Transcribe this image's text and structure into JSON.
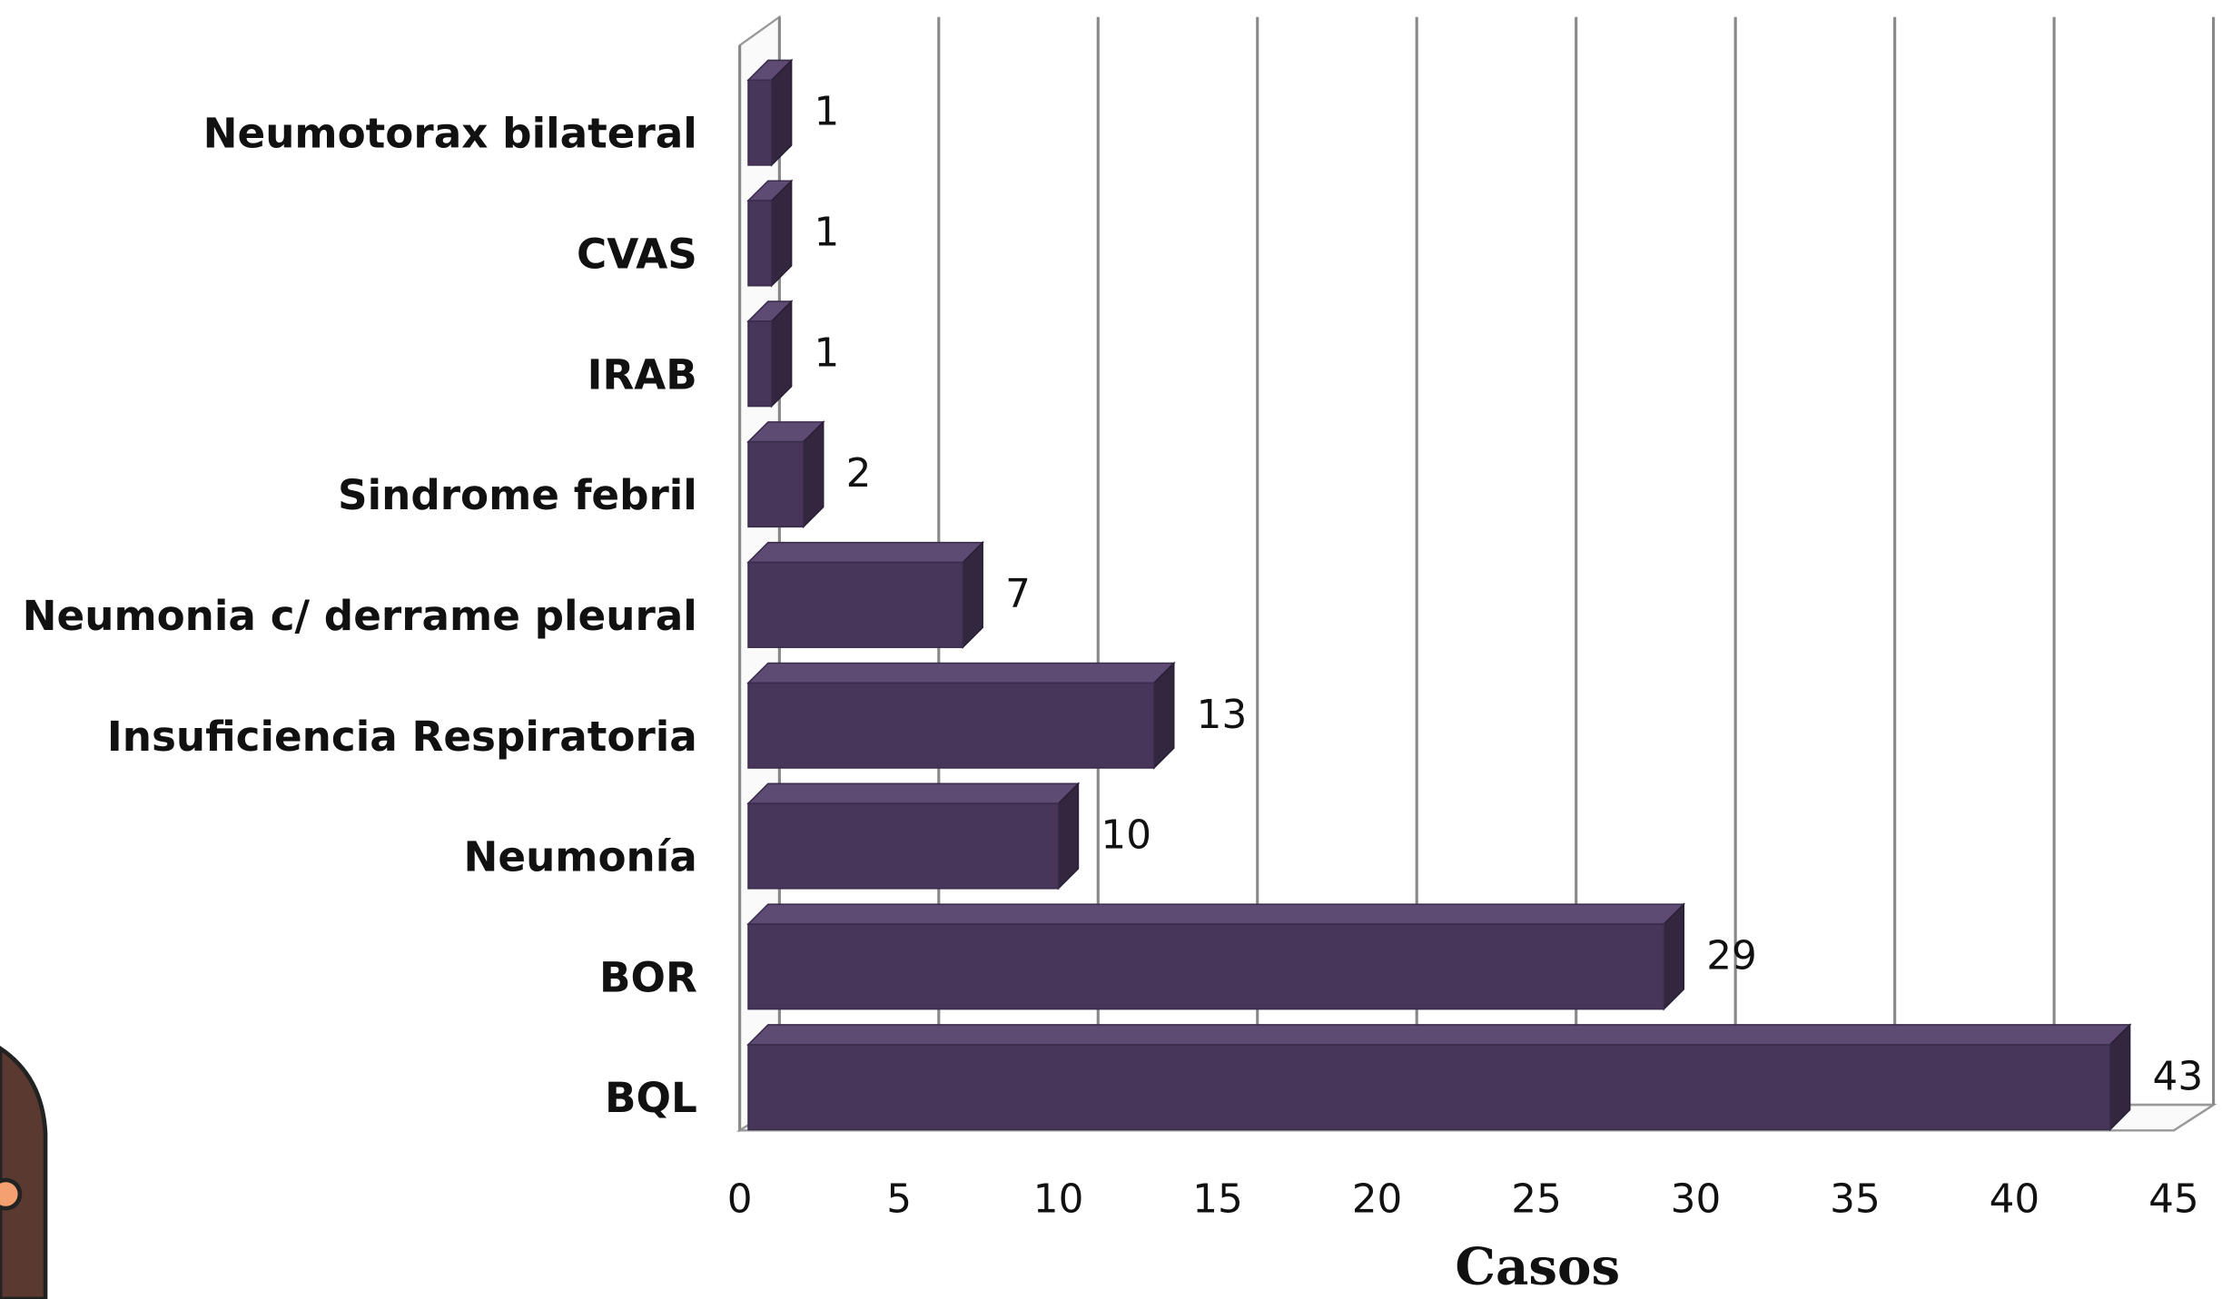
{
  "chart_data": {
    "type": "bar",
    "orientation": "horizontal",
    "categories": [
      "Neumotorax bilateral",
      "CVAS",
      "IRAB",
      "Sindrome febril",
      "Neumonia c/ derrame pleural",
      "Insuficiencia Respiratoria",
      "Neumonía",
      "BOR",
      "BQL"
    ],
    "values": [
      1,
      1,
      1,
      2,
      7,
      13,
      10,
      29,
      43
    ],
    "color": "#47365a",
    "x_label": "Casos",
    "xlim": [
      0,
      45
    ],
    "xticks": [
      0,
      5,
      10,
      15,
      20,
      25,
      30,
      35,
      40,
      45
    ],
    "grid": true
  }
}
